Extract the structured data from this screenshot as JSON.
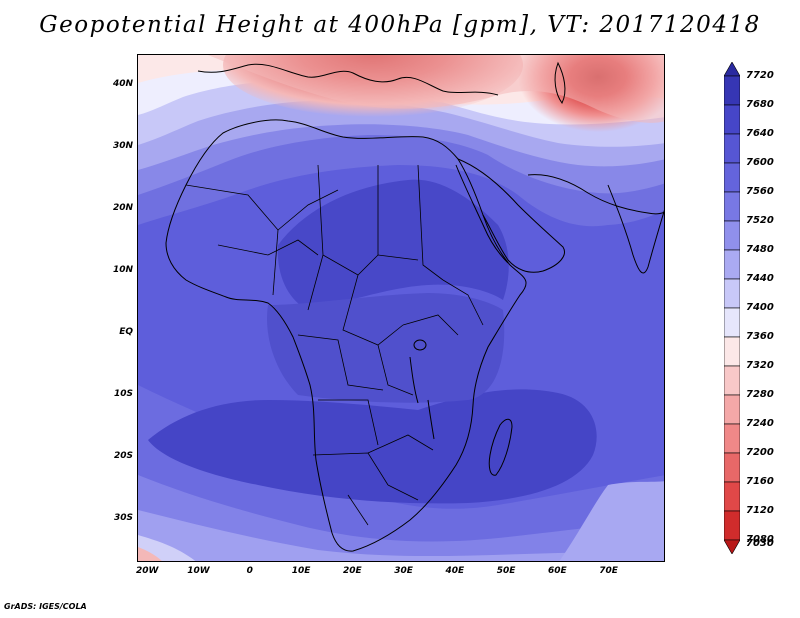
{
  "title": "Geopotential Height at 400hPa [gpm], VT: 2017120418",
  "credit": "GrADS: IGES/COLA",
  "map": {
    "lat_labels": [
      {
        "text": "40N",
        "lat": 40
      },
      {
        "text": "30N",
        "lat": 30
      },
      {
        "text": "20N",
        "lat": 20
      },
      {
        "text": "10N",
        "lat": 10
      },
      {
        "text": "EQ",
        "lat": 0
      },
      {
        "text": "10S",
        "lat": -10
      },
      {
        "text": "20S",
        "lat": -20
      },
      {
        "text": "30S",
        "lat": -30
      }
    ],
    "lon_labels": [
      {
        "text": "20W",
        "lon": -20
      },
      {
        "text": "10W",
        "lon": -10
      },
      {
        "text": "0",
        "lon": 0
      },
      {
        "text": "10E",
        "lon": 10
      },
      {
        "text": "20E",
        "lon": 20
      },
      {
        "text": "30E",
        "lon": 30
      },
      {
        "text": "40E",
        "lon": 40
      },
      {
        "text": "50E",
        "lon": 50
      },
      {
        "text": "60E",
        "lon": 60
      },
      {
        "text": "70E",
        "lon": 70
      }
    ],
    "lon_range": [
      -22,
      81
    ],
    "lat_range": [
      -37,
      45
    ]
  },
  "colorbar": {
    "levels": [
      "7720",
      "7680",
      "7640",
      "7600",
      "7560",
      "7520",
      "7480",
      "7440",
      "7400",
      "7360",
      "7320",
      "7280",
      "7240",
      "7200",
      "7160",
      "7120",
      "7080",
      "7030"
    ],
    "colors": [
      "#2a2aa0",
      "#3636b4",
      "#4646c8",
      "#5656d4",
      "#6464dc",
      "#7878e4",
      "#9090ec",
      "#aaaaf2",
      "#c8c8f8",
      "#e6e6fc",
      "#fce8e8",
      "#f8c8c8",
      "#f4a8a8",
      "#f08888",
      "#e86868",
      "#e04848",
      "#d02c2c",
      "#b81818"
    ]
  }
}
